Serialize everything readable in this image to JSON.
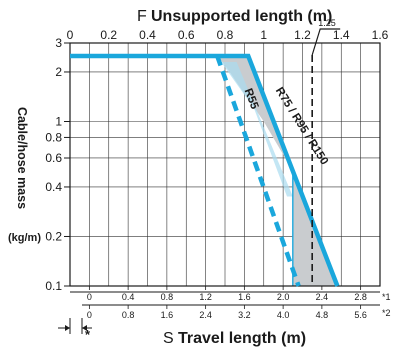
{
  "chart_data": {
    "type": "line",
    "title": "",
    "top_axis": {
      "letter": "F",
      "label": "Unsupported length (m)",
      "range": [
        0,
        1.6
      ],
      "ticks": [
        "0",
        "0.2",
        "0.4",
        "0.6",
        "0.8",
        "1",
        "1.2",
        "1.4",
        "1.6"
      ],
      "marker_label": "1.25",
      "marker_value": 1.25
    },
    "y_axis": {
      "label": "Cable/hose mass",
      "unit": "(kg/m)",
      "scale": "log",
      "range": [
        0.1,
        3
      ],
      "ticks": [
        {
          "value": 3,
          "label": "3"
        },
        {
          "value": 2,
          "label": "2"
        },
        {
          "value": 1,
          "label": "1"
        },
        {
          "value": 0.8,
          "label": "0.8"
        },
        {
          "value": 0.6,
          "label": "0.6"
        },
        {
          "value": 0.4,
          "label": "0.4"
        },
        {
          "value": 0.2,
          "label": "0.2"
        },
        {
          "value": 0.1,
          "label": "0.1"
        }
      ]
    },
    "bottom_axis_1": {
      "ticks": [
        "0",
        "0.4",
        "0.8",
        "1.2",
        "1.6",
        "2.0",
        "2.4",
        "2.8"
      ],
      "footnote": "*1"
    },
    "bottom_axis_2": {
      "ticks": [
        "0",
        "0.8",
        "1.6",
        "2.4",
        "3.2",
        "4.0",
        "4.8",
        "5.6"
      ],
      "footnote": "*2",
      "letter": "S",
      "label": "Travel length (m)"
    },
    "star_note": "*",
    "series": [
      {
        "name": "R75 / R95 / R150",
        "style": "solid",
        "color": "#1aa7dc",
        "points": [
          {
            "x": 0,
            "y": 2.5
          },
          {
            "x": 0.92,
            "y": 2.5
          },
          {
            "x": 1.38,
            "y": 0.1
          }
        ]
      },
      {
        "name": "R55",
        "style": "dashed",
        "color": "#1aa7dc",
        "points": [
          {
            "x": 0.76,
            "y": 2.5
          },
          {
            "x": 1.18,
            "y": 0.1
          }
        ]
      }
    ],
    "shaded_region_color": "#c9cccf",
    "grid": true
  }
}
